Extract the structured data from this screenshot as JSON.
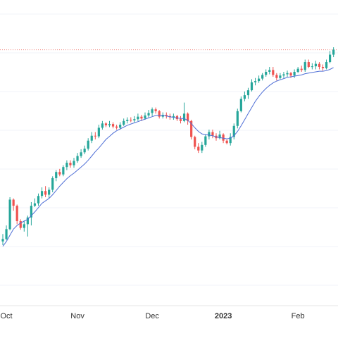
{
  "chart_data": {
    "type": "candlestick",
    "title": "",
    "xlabel": "",
    "ylabel": "",
    "x_tick_labels": [
      "Oct",
      "Nov",
      "Dec",
      "2023",
      "Feb"
    ],
    "x_tick_label_bold": [
      false,
      false,
      false,
      true,
      false
    ],
    "x_tick_indices": [
      1,
      21,
      42,
      62,
      83
    ],
    "ylim": [
      0,
      470
    ],
    "reference_line": {
      "value": 412,
      "style": "dotted",
      "color": "#f28b82"
    },
    "colors": {
      "up": "#26a69a",
      "down": "#ef5350",
      "ma": "#4f6fd6",
      "grid": "#f0f3fa",
      "separator": "#e6e6e6"
    },
    "candles": [
      [
        100,
        104,
        112,
        94
      ],
      [
        104,
        120,
        126,
        102
      ],
      [
        120,
        168,
        172,
        118
      ],
      [
        168,
        158,
        170,
        150
      ],
      [
        158,
        133,
        160,
        128
      ],
      [
        133,
        122,
        136,
        119
      ],
      [
        122,
        128,
        134,
        116
      ],
      [
        128,
        139,
        142,
        108
      ],
      [
        139,
        158,
        164,
        126
      ],
      [
        158,
        162,
        170,
        156
      ],
      [
        162,
        174,
        178,
        158
      ],
      [
        174,
        182,
        188,
        170
      ],
      [
        182,
        176,
        190,
        172
      ],
      [
        176,
        184,
        188,
        170
      ],
      [
        184,
        203,
        206,
        180
      ],
      [
        203,
        213,
        216,
        198
      ],
      [
        213,
        209,
        218,
        206
      ],
      [
        209,
        221,
        224,
        206
      ],
      [
        221,
        228,
        232,
        216
      ],
      [
        228,
        224,
        232,
        220
      ],
      [
        224,
        231,
        236,
        220
      ],
      [
        231,
        239,
        244,
        228
      ],
      [
        239,
        245,
        250,
        236
      ],
      [
        245,
        251,
        256,
        242
      ],
      [
        251,
        264,
        268,
        248
      ],
      [
        264,
        272,
        278,
        260
      ],
      [
        272,
        271,
        278,
        266
      ],
      [
        271,
        285,
        290,
        268
      ],
      [
        285,
        292,
        296,
        282
      ],
      [
        292,
        289,
        294,
        286
      ],
      [
        289,
        291,
        296,
        286
      ],
      [
        291,
        287,
        294,
        284
      ],
      [
        287,
        285,
        290,
        282
      ],
      [
        285,
        290,
        294,
        282
      ],
      [
        290,
        296,
        300,
        288
      ],
      [
        296,
        298,
        302,
        292
      ],
      [
        298,
        297,
        302,
        294
      ],
      [
        297,
        299,
        304,
        294
      ],
      [
        299,
        303,
        308,
        296
      ],
      [
        303,
        300,
        306,
        296
      ],
      [
        300,
        305,
        310,
        298
      ],
      [
        305,
        309,
        314,
        302
      ],
      [
        309,
        315,
        318,
        304
      ],
      [
        315,
        312,
        318,
        308
      ],
      [
        312,
        303,
        314,
        300
      ],
      [
        303,
        306,
        310,
        300
      ],
      [
        306,
        304,
        310,
        300
      ],
      [
        304,
        302,
        308,
        298
      ],
      [
        302,
        304,
        308,
        298
      ],
      [
        304,
        299,
        306,
        296
      ],
      [
        299,
        296,
        304,
        292
      ],
      [
        296,
        308,
        326,
        294
      ],
      [
        308,
        296,
        310,
        290
      ],
      [
        296,
        270,
        298,
        266
      ],
      [
        270,
        254,
        272,
        250
      ],
      [
        254,
        248,
        260,
        244
      ],
      [
        248,
        257,
        262,
        244
      ],
      [
        257,
        271,
        274,
        254
      ],
      [
        271,
        278,
        282,
        266
      ],
      [
        278,
        272,
        282,
        268
      ],
      [
        272,
        268,
        276,
        264
      ],
      [
        268,
        274,
        280,
        266
      ],
      [
        274,
        264,
        276,
        260
      ],
      [
        264,
        260,
        266,
        258
      ],
      [
        260,
        270,
        276,
        256
      ],
      [
        270,
        288,
        292,
        266
      ],
      [
        288,
        312,
        316,
        284
      ],
      [
        312,
        332,
        336,
        310
      ],
      [
        332,
        338,
        344,
        328
      ],
      [
        338,
        346,
        350,
        332
      ],
      [
        346,
        359,
        364,
        344
      ],
      [
        359,
        361,
        366,
        354
      ],
      [
        361,
        365,
        370,
        358
      ],
      [
        365,
        371,
        374,
        362
      ],
      [
        371,
        376,
        380,
        368
      ],
      [
        376,
        379,
        384,
        372
      ],
      [
        379,
        371,
        384,
        368
      ],
      [
        371,
        366,
        374,
        362
      ],
      [
        366,
        370,
        374,
        364
      ],
      [
        370,
        372,
        376,
        366
      ],
      [
        372,
        374,
        378,
        368
      ],
      [
        374,
        370,
        376,
        366
      ],
      [
        370,
        376,
        380,
        366
      ],
      [
        376,
        381,
        384,
        374
      ],
      [
        381,
        379,
        386,
        376
      ],
      [
        379,
        392,
        396,
        376
      ],
      [
        392,
        384,
        396,
        382
      ],
      [
        384,
        385,
        390,
        380
      ],
      [
        385,
        389,
        394,
        380
      ],
      [
        389,
        384,
        392,
        380
      ],
      [
        384,
        382,
        388,
        378
      ],
      [
        382,
        392,
        396,
        380
      ],
      [
        392,
        404,
        410,
        390
      ],
      [
        404,
        412,
        416,
        400
      ]
    ],
    "ma_values": [
      92,
      100,
      110,
      120,
      126,
      130,
      133,
      136,
      142,
      148,
      155,
      162,
      166,
      170,
      176,
      183,
      190,
      196,
      202,
      207,
      211,
      216,
      221,
      226,
      232,
      239,
      246,
      252,
      259,
      266,
      271,
      276,
      280,
      283,
      286,
      289,
      291,
      293,
      295,
      297,
      299,
      301,
      303,
      305,
      305,
      305,
      304,
      303,
      302,
      301,
      300,
      300,
      297,
      292,
      285,
      279,
      275,
      274,
      273,
      272,
      270,
      269,
      268,
      267,
      268,
      272,
      279,
      288,
      298,
      308,
      318,
      328,
      336,
      343,
      349,
      354,
      358,
      361,
      363,
      365,
      367,
      368,
      369,
      370,
      371,
      373,
      374,
      375,
      376,
      377,
      377,
      378,
      380,
      383
    ]
  }
}
